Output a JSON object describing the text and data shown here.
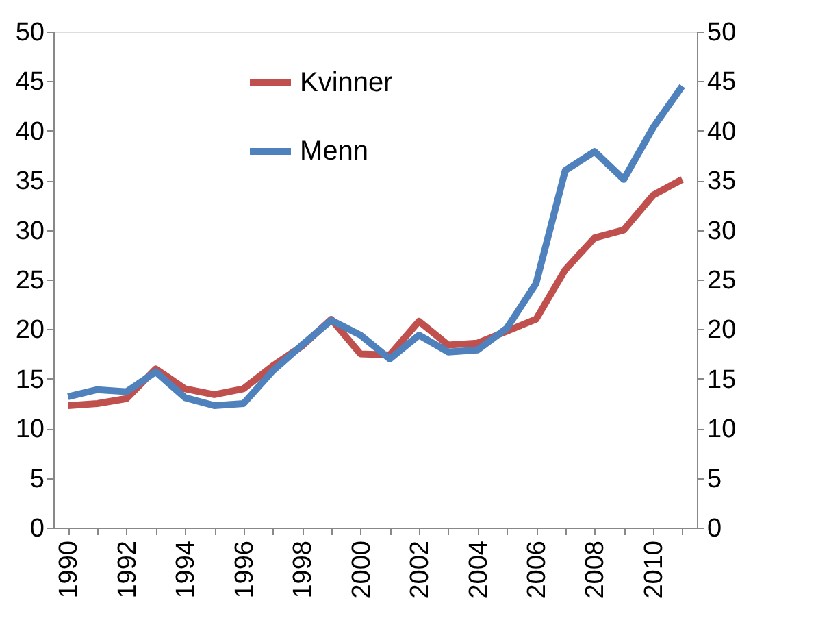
{
  "chart_data": {
    "type": "line",
    "categories": [
      "1990",
      null,
      "1992",
      null,
      "1994",
      null,
      "1996",
      null,
      "1998",
      null,
      "2000",
      null,
      "2002",
      null,
      "2004",
      null,
      "2006",
      null,
      "2008",
      null,
      "2010",
      null
    ],
    "series": [
      {
        "name": "Kvinner",
        "color": "#c0504d",
        "values": [
          12.3,
          12.5,
          13.0,
          16.0,
          14.0,
          13.4,
          14.0,
          16.3,
          18.3,
          21.0,
          17.5,
          17.4,
          20.8,
          18.4,
          18.6,
          19.8,
          21.0,
          26.0,
          29.2,
          30.0,
          33.5,
          35.1
        ]
      },
      {
        "name": "Menn",
        "color": "#4f81bd",
        "values": [
          13.2,
          13.9,
          13.7,
          15.7,
          13.1,
          12.3,
          12.5,
          15.8,
          18.4,
          20.9,
          19.4,
          17.0,
          19.4,
          17.7,
          17.9,
          20.1,
          24.6,
          36.0,
          37.9,
          35.1,
          40.3,
          44.5
        ]
      }
    ],
    "ylim": [
      0,
      50
    ],
    "yticks": [
      0,
      5,
      10,
      15,
      20,
      25,
      30,
      35,
      40,
      45,
      50
    ],
    "y2lim": [
      0,
      50
    ],
    "y2ticks": [
      0,
      5,
      10,
      15,
      20,
      25,
      30,
      35,
      40,
      45,
      50
    ],
    "grid": false,
    "legend": "top",
    "marker": "none",
    "line_style": "solid"
  }
}
